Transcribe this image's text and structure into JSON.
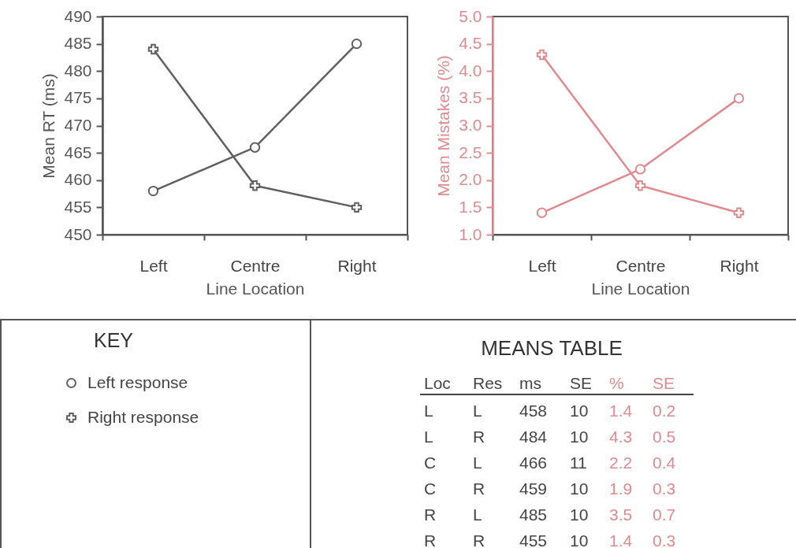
{
  "chart_data": [
    {
      "type": "line",
      "xlabel": "Line Location",
      "ylabel": "Mean RT (ms)",
      "categories": [
        "Left",
        "Centre",
        "Right"
      ],
      "ylim": [
        450,
        490
      ],
      "yticks": [
        450,
        455,
        460,
        465,
        470,
        475,
        480,
        485,
        490
      ],
      "legend": "bottom left",
      "legend_title": "KEY",
      "series": [
        {
          "name": "Left response",
          "color": "#606060",
          "marker": "circle",
          "values": [
            458,
            466,
            485
          ]
        },
        {
          "name": "Right response",
          "color": "#606060",
          "marker": "cross",
          "values": [
            484,
            459,
            455
          ]
        }
      ]
    },
    {
      "type": "line",
      "xlabel": "Line Location",
      "ylabel": "Mean Mistakes (%)",
      "categories": [
        "Left",
        "Centre",
        "Right"
      ],
      "ylim": [
        1,
        5
      ],
      "yticks": [
        {
          "value": 1,
          "label": "1.0"
        },
        1.5,
        {
          "value": 2,
          "label": "2.0"
        },
        2.5,
        {
          "value": 3,
          "label": "3.0"
        },
        3.5,
        {
          "value": 4,
          "label": "4.0"
        },
        4.5,
        {
          "value": 5,
          "label": "5.0"
        }
      ],
      "series": [
        {
          "color": "#e08a90",
          "marker": "circle",
          "values": [
            1.4,
            2.2,
            3.5
          ]
        },
        {
          "color": "#e08a90",
          "marker": "cross",
          "values": [
            4.3,
            1.9,
            1.4
          ]
        }
      ]
    },
    {
      "type": "other",
      "title": "MEANS TABLE",
      "annotations": [
        "Loc Res ms SE % SE",
        "L L 458 10 1.4 0.2",
        "L R 484 10 4.3 0.5",
        "C L 466 11 2.2 0.4",
        "C R 459 10 1.9 0.3",
        "R L 485 10 3.5 0.7",
        "R R 455 10 1.4 0.3"
      ]
    }
  ]
}
